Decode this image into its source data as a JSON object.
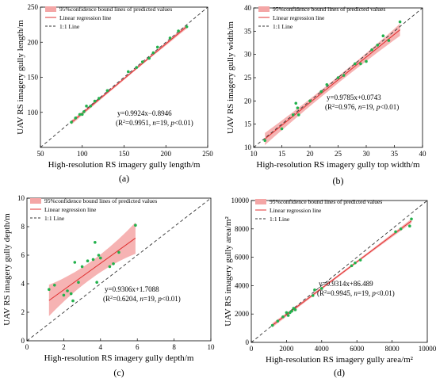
{
  "legend": {
    "band": "95%confidence bound lines of predicted values",
    "regression": "Linear regression line",
    "oneone": "1:1 Line"
  },
  "colors": {
    "band": "#f4a6a6",
    "regression": "#e03030",
    "points": "#22b14c",
    "oneone": "#333333"
  },
  "chart_data": [
    {
      "panel": "(a)",
      "type": "scatter",
      "xlabel": "High-resolution RS imagery gully length/m",
      "ylabel": "UAV RS imagery gully length/m",
      "xlim": [
        50,
        250
      ],
      "ylim": [
        50,
        250
      ],
      "xticks": [
        50,
        100,
        150,
        200,
        250
      ],
      "yticks": [
        100,
        150,
        200,
        250
      ],
      "equation": "y=0.9924x−0.8946",
      "stats_prefix": "(R",
      "stats_r2": "=0.9951, ",
      "stats_n": "n",
      "stats_n_val": "=19, ",
      "stats_p": "p",
      "stats_p_val": "<0.01)",
      "slope": 0.9924,
      "intercept": -0.8946,
      "band_halfwidth": [
        3,
        3
      ],
      "x": [
        87,
        92,
        97,
        100,
        102,
        105,
        110,
        115,
        120,
        130,
        155,
        165,
        172,
        180,
        185,
        190,
        205,
        215,
        225
      ],
      "y": [
        86,
        92,
        97,
        97,
        101,
        109,
        109,
        116,
        120,
        131,
        158,
        164,
        172,
        177,
        185,
        193,
        206,
        216,
        222
      ]
    },
    {
      "panel": "(b)",
      "type": "scatter",
      "xlabel": "High-resolution RS imagery gully top width/m",
      "ylabel": "UAV RS imagery gully width/m",
      "xlim": [
        10,
        40
      ],
      "ylim": [
        10,
        40
      ],
      "xticks": [
        10,
        15,
        20,
        25,
        30,
        35,
        40
      ],
      "yticks": [
        10,
        15,
        20,
        25,
        30,
        35,
        40
      ],
      "equation": "y=0.9785x+0.0743",
      "stats_prefix": "(R",
      "stats_r2": "=0.976, ",
      "stats_n": "n",
      "stats_n_val": "=19, ",
      "stats_p": "p",
      "stats_p_val": "<0.01)",
      "slope": 0.9785,
      "intercept": 0.0743,
      "band_halfwidth": [
        1.3,
        1.3
      ],
      "x": [
        12,
        15,
        17,
        17.5,
        17.8,
        18,
        20,
        22,
        23,
        25,
        26,
        28,
        29,
        30,
        31,
        32,
        33,
        34,
        36
      ],
      "y": [
        11.5,
        14,
        17,
        19.5,
        18.5,
        17,
        20,
        22,
        23.5,
        25,
        25.5,
        28,
        28,
        28.5,
        31,
        32,
        34,
        33,
        37
      ]
    },
    {
      "panel": "(c)",
      "type": "scatter",
      "xlabel": "High-resolution RS imagery gully depth/m",
      "ylabel": "UAV RS imagery gully depth/m",
      "xlim": [
        0,
        10
      ],
      "ylim": [
        0,
        10
      ],
      "xticks": [
        0,
        2,
        4,
        6,
        8,
        10
      ],
      "yticks": [
        0,
        2,
        4,
        6,
        8,
        10
      ],
      "equation": "y=0.9306x+1.7088",
      "stats_prefix": "(R",
      "stats_r2": "=0.6204, ",
      "stats_n": "n",
      "stats_n_val": "=19, ",
      "stats_p": "p",
      "stats_p_val": "<0.01)",
      "slope": 0.9306,
      "intercept": 1.7088,
      "band_halfwidth": [
        1.1,
        1.0
      ],
      "x": [
        1.2,
        1.5,
        2.0,
        2.2,
        2.4,
        2.5,
        2.6,
        2.8,
        3.0,
        3.3,
        3.6,
        3.7,
        3.8,
        3.9,
        4.0,
        4.5,
        4.7,
        5.0,
        5.9
      ],
      "y": [
        3.6,
        3.9,
        3.2,
        3.5,
        3.3,
        2.8,
        5.5,
        4.1,
        5.2,
        5.6,
        5.7,
        6.9,
        4.1,
        6.0,
        5.8,
        5.2,
        5.4,
        6.2,
        8.1
      ]
    },
    {
      "panel": "(d)",
      "type": "scatter",
      "xlabel": "High-resolution RS imagery gully area/m²",
      "ylabel": "UAV RS imagery gully area/m²",
      "xlim": [
        0,
        10000
      ],
      "ylim": [
        0,
        10000
      ],
      "xticks": [
        0,
        2000,
        4000,
        6000,
        8000,
        10000
      ],
      "yticks": [
        0,
        2000,
        4000,
        6000,
        8000,
        10000
      ],
      "equation": "y=0.9314x+86.489",
      "stats_prefix": "(R",
      "stats_r2": "=0.9945, ",
      "stats_n": "n",
      "stats_n_val": "=19, ",
      "stats_p": "p",
      "stats_p_val": "<0.01)",
      "slope": 0.9314,
      "intercept": 86.489,
      "band_halfwidth": [
        150,
        150
      ],
      "x": [
        1200,
        1500,
        1800,
        2000,
        2100,
        2200,
        2300,
        2400,
        2500,
        3500,
        3600,
        4000,
        5700,
        5900,
        6200,
        8200,
        8500,
        9000,
        9100
      ],
      "y": [
        1200,
        1500,
        1800,
        2100,
        1900,
        2100,
        2200,
        2400,
        2300,
        3300,
        3700,
        3800,
        5400,
        5600,
        5800,
        7800,
        8000,
        8200,
        8700
      ]
    }
  ]
}
